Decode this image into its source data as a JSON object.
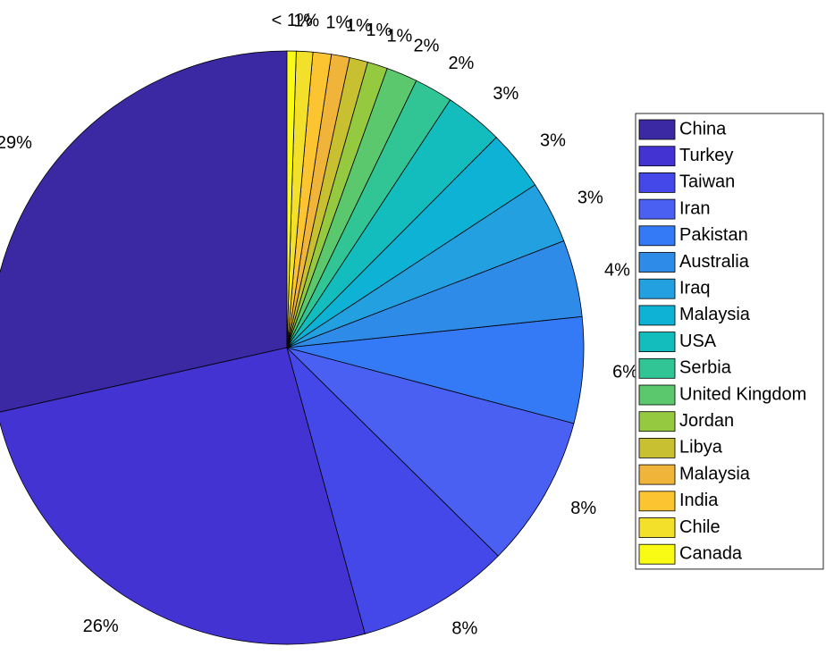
{
  "chart_data": {
    "type": "pie",
    "categories": [
      "China",
      "Turkey",
      "Taiwan",
      "Iran",
      "Pakistan",
      "Australia",
      "Iraq",
      "Malaysia",
      "USA",
      "Serbia",
      "United Kingdom",
      "Jordan",
      "Libya",
      "Malaysia",
      "India",
      "Chile",
      "Canada"
    ],
    "values": [
      28.6,
      25.8,
      8.4,
      8.3,
      5.8,
      4.2,
      3.4,
      3.3,
      3.2,
      2.1,
      1.7,
      1.1,
      1.0,
      1.0,
      1.0,
      0.9,
      0.5
    ],
    "value_labels": [
      "29%",
      "26%",
      "8%",
      "8%",
      "6%",
      "4%",
      "3%",
      "3%",
      "3%",
      "2%",
      "2%",
      "1%",
      "1%",
      "1%",
      "1%",
      "1%",
      "< 1%"
    ],
    "colors": [
      "#3b29a3",
      "#4333d2",
      "#4548e8",
      "#4a60f3",
      "#3479f5",
      "#2e8be8",
      "#22a0e0",
      "#0eb2d4",
      "#14bdbd",
      "#31c596",
      "#5cc86e",
      "#94c940",
      "#c8c030",
      "#f0b43a",
      "#fbc430",
      "#f2e02a",
      "#f9fb15"
    ],
    "legend": "eastoutside"
  }
}
